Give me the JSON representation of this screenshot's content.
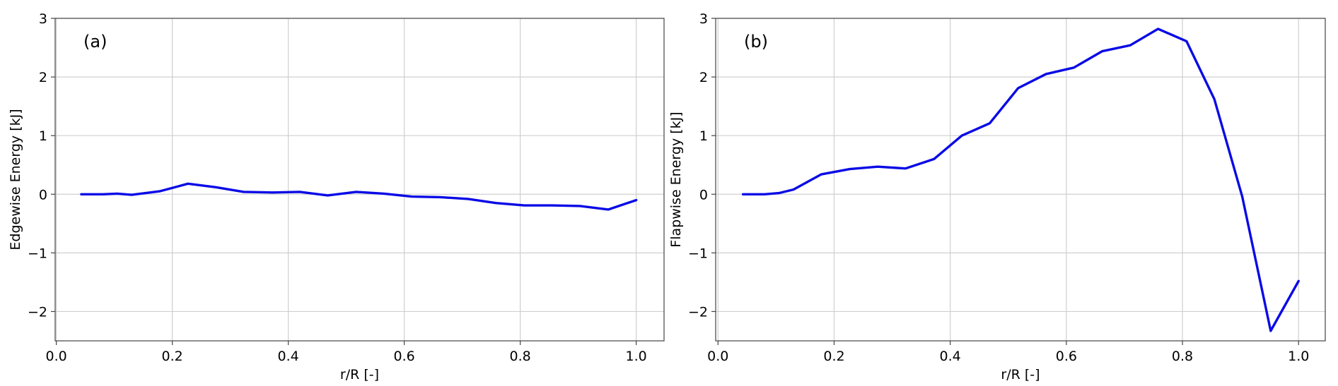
{
  "chart_data": [
    {
      "type": "line",
      "panel_label": "(a)",
      "xlabel": "r/R [-]",
      "ylabel": "Edgewise Energy [kJ]",
      "xlim": [
        -0.002,
        1.048
      ],
      "ylim": [
        -2.5,
        3
      ],
      "xticks": [
        0.0,
        0.2,
        0.4,
        0.6,
        0.8,
        1.0
      ],
      "xtick_labels": [
        "0.0",
        "0.2",
        "0.4",
        "0.6",
        "0.8",
        "1.0"
      ],
      "yticks": [
        -2,
        -1,
        0,
        1,
        2,
        3
      ],
      "ytick_labels": [
        "−2",
        "−1",
        "0",
        "1",
        "2",
        "3"
      ],
      "grid": true,
      "color": "#0a0ae6",
      "series": [
        {
          "x": [
            0.043,
            0.08,
            0.105,
            0.13,
            0.178,
            0.227,
            0.275,
            0.323,
            0.372,
            0.42,
            0.468,
            0.517,
            0.565,
            0.613,
            0.662,
            0.71,
            0.758,
            0.807,
            0.855,
            0.903,
            0.952,
            1.0
          ],
          "y": [
            0.0,
            0.0,
            0.01,
            -0.01,
            0.05,
            0.18,
            0.12,
            0.04,
            0.03,
            0.04,
            -0.02,
            0.04,
            0.01,
            -0.04,
            -0.05,
            -0.08,
            -0.15,
            -0.19,
            -0.19,
            -0.2,
            -0.26,
            -0.1
          ]
        }
      ]
    },
    {
      "type": "line",
      "panel_label": "(b)",
      "xlabel": "r/R [-]",
      "ylabel": "Flapwise Energy [kJ]",
      "xlim": [
        -0.004,
        1.046
      ],
      "ylim": [
        -2.5,
        3
      ],
      "xticks": [
        0.0,
        0.2,
        0.4,
        0.6,
        0.8,
        1.0
      ],
      "xtick_labels": [
        "0.0",
        "0.2",
        "0.4",
        "0.6",
        "0.8",
        "1.0"
      ],
      "yticks": [
        -2,
        -1,
        0,
        1,
        2,
        3
      ],
      "ytick_labels": [
        "−2",
        "−1",
        "0",
        "1",
        "2",
        "3"
      ],
      "grid": true,
      "color": "#0a0ae6",
      "series": [
        {
          "x": [
            0.043,
            0.08,
            0.105,
            0.13,
            0.178,
            0.227,
            0.275,
            0.323,
            0.372,
            0.42,
            0.468,
            0.517,
            0.565,
            0.613,
            0.662,
            0.71,
            0.758,
            0.807,
            0.855,
            0.903,
            0.952,
            1.0
          ],
          "y": [
            0.0,
            0.0,
            0.02,
            0.08,
            0.34,
            0.43,
            0.47,
            0.44,
            0.6,
            1.0,
            1.21,
            1.81,
            2.05,
            2.16,
            2.44,
            2.54,
            2.82,
            2.61,
            1.62,
            -0.04,
            -2.33,
            -1.48
          ]
        }
      ]
    }
  ]
}
